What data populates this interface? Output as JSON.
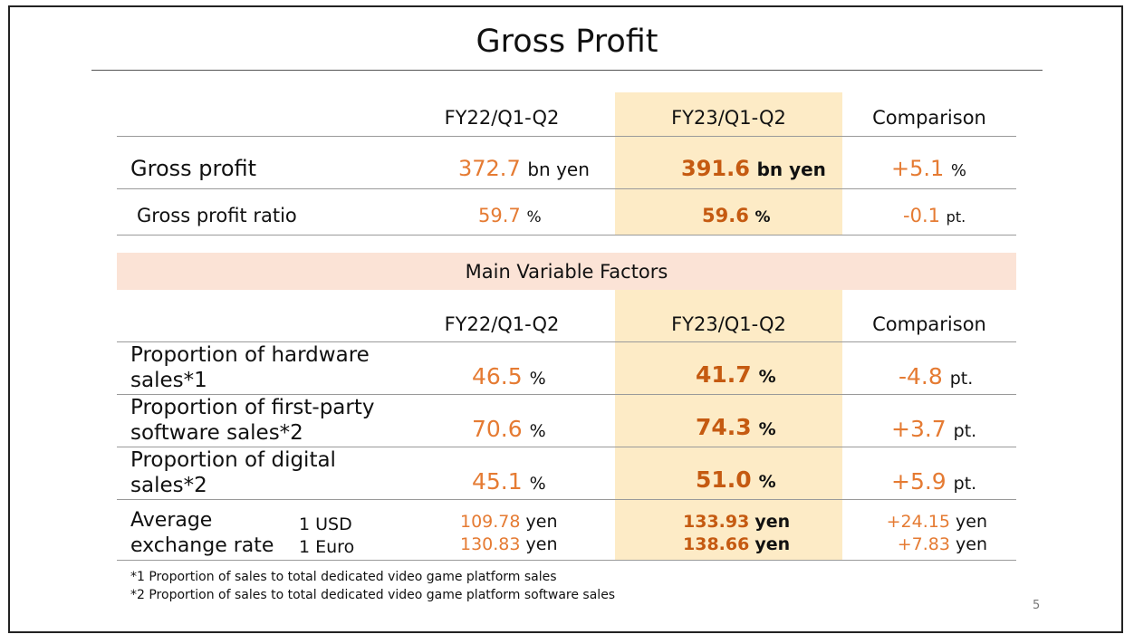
{
  "title": "Gross Profit",
  "top_table": {
    "columns": [
      "FY22/Q1-Q2",
      "FY23/Q1-Q2",
      "Comparison"
    ],
    "rows": [
      {
        "label": "Gross profit",
        "fy22": "372.7",
        "fy22_unit": "bn yen",
        "fy23": "391.6",
        "fy23_unit": "bn yen",
        "cmp": "+5.1",
        "cmp_unit": "%"
      },
      {
        "label": "Gross profit ratio",
        "fy22": "59.7",
        "fy22_unit": "%",
        "fy23": "59.6",
        "fy23_unit": "%",
        "cmp": "-0.1",
        "cmp_unit": "pt."
      }
    ]
  },
  "factors": {
    "band_title": "Main Variable Factors",
    "columns": [
      "FY22/Q1-Q2",
      "FY23/Q1-Q2",
      "Comparison"
    ],
    "rows": [
      {
        "label_line1": "Proportion of hardware",
        "label_line2": "sales*1",
        "fy22": "46.5",
        "fy23": "41.7",
        "cmp": "-4.8",
        "unit": "%",
        "cmp_unit": "pt."
      },
      {
        "label_line1": "Proportion of first-party",
        "label_line2": "software sales*2",
        "fy22": "70.6",
        "fy23": "74.3",
        "cmp": "+3.7",
        "unit": "%",
        "cmp_unit": "pt."
      },
      {
        "label_line1": "Proportion of digital",
        "label_line2": "sales*2",
        "fy22": "45.1",
        "fy23": "51.0",
        "cmp": "+5.9",
        "unit": "%",
        "cmp_unit": "pt."
      }
    ],
    "exchange": {
      "label_line1": "Average",
      "label_line2": "exchange rate",
      "cur1": "1 USD",
      "cur2": "1 Euro",
      "unit": "yen",
      "fy22": [
        "109.78",
        "130.83"
      ],
      "fy23": [
        "133.93",
        "138.66"
      ],
      "cmp": [
        "+24.15",
        "+7.83"
      ]
    }
  },
  "footnotes": [
    "*1 Proportion of sales to total dedicated video game platform sales",
    "*2 Proportion of sales to total dedicated video game platform software sales"
  ],
  "page_number": "5",
  "colors": {
    "highlight": "#fdebc6",
    "band": "#fbe3d6",
    "value_orange": "#e57b33",
    "value_bold": "#c55a11"
  }
}
